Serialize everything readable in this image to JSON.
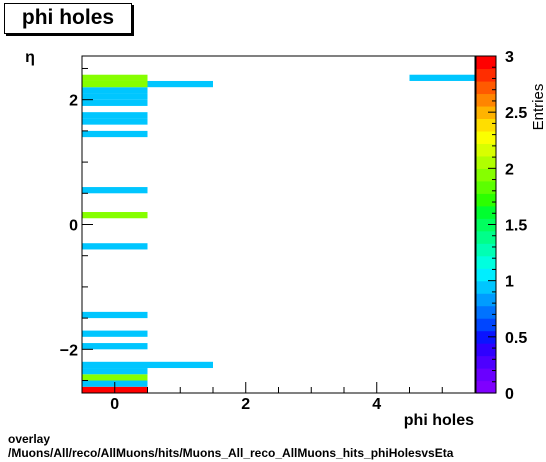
{
  "page": {
    "title": "phi holes",
    "footer_line1": "overlay",
    "footer_line2": "/Muons/All/reco/AllMuons/hits/Muons_All_reco_AllMuons_hits_phiHolesvsEta"
  },
  "chart_data": {
    "type": "heatmap",
    "title": "phi holes",
    "xlabel": "phi holes",
    "ylabel": "η",
    "zlabel": "Entries",
    "xlim": [
      -0.5,
      5.5
    ],
    "ylim": [
      -2.7,
      2.7
    ],
    "zlim": [
      0,
      3
    ],
    "x_ticks": [
      0,
      2,
      4
    ],
    "y_ticks": [
      -2,
      0,
      2
    ],
    "z_ticks": [
      "0",
      "0.5",
      "1",
      "1.5",
      "2",
      "2.5",
      "3"
    ],
    "bin_width_x": 1,
    "bin_height_y": 0.1,
    "cells": [
      {
        "x": 0,
        "eta": -2.65,
        "value": 3
      },
      {
        "x": 0,
        "eta": -2.55,
        "value": 1
      },
      {
        "x": 0,
        "eta": -2.45,
        "value": 2
      },
      {
        "x": 0,
        "eta": -2.35,
        "value": 1
      },
      {
        "x": 0,
        "eta": -2.25,
        "value": 1
      },
      {
        "x": 1,
        "eta": -2.25,
        "value": 1
      },
      {
        "x": 0,
        "eta": -1.95,
        "value": 1
      },
      {
        "x": 0,
        "eta": -1.75,
        "value": 1
      },
      {
        "x": 0,
        "eta": -1.45,
        "value": 1
      },
      {
        "x": 0,
        "eta": -0.35,
        "value": 1
      },
      {
        "x": 0,
        "eta": 0.15,
        "value": 2
      },
      {
        "x": 0,
        "eta": 0.55,
        "value": 1
      },
      {
        "x": 0,
        "eta": 1.45,
        "value": 1
      },
      {
        "x": 0,
        "eta": 1.65,
        "value": 1
      },
      {
        "x": 0,
        "eta": 1.75,
        "value": 1
      },
      {
        "x": 0,
        "eta": 1.95,
        "value": 1
      },
      {
        "x": 0,
        "eta": 2.05,
        "value": 1
      },
      {
        "x": 0,
        "eta": 2.15,
        "value": 1
      },
      {
        "x": 0,
        "eta": 2.25,
        "value": 2
      },
      {
        "x": 0,
        "eta": 2.35,
        "value": 2
      },
      {
        "x": 1,
        "eta": 2.25,
        "value": 1
      },
      {
        "x": 5,
        "eta": 2.35,
        "value": 1
      }
    ],
    "palette": [
      "#7f00ff",
      "#6a00ff",
      "#4d00ff",
      "#2f00ff",
      "#0a14ff",
      "#0046ff",
      "#0073ff",
      "#009cff",
      "#00c6ff",
      "#00eeff",
      "#00ffdf",
      "#00ffb4",
      "#00ff8a",
      "#00ff5e",
      "#00ff2f",
      "#2cff00",
      "#5cff00",
      "#86ff00",
      "#b0ff00",
      "#d8ff00",
      "#fbff00",
      "#ffde00",
      "#ffb300",
      "#ff8500",
      "#ff5a00",
      "#ff2d00",
      "#ff0000"
    ]
  }
}
